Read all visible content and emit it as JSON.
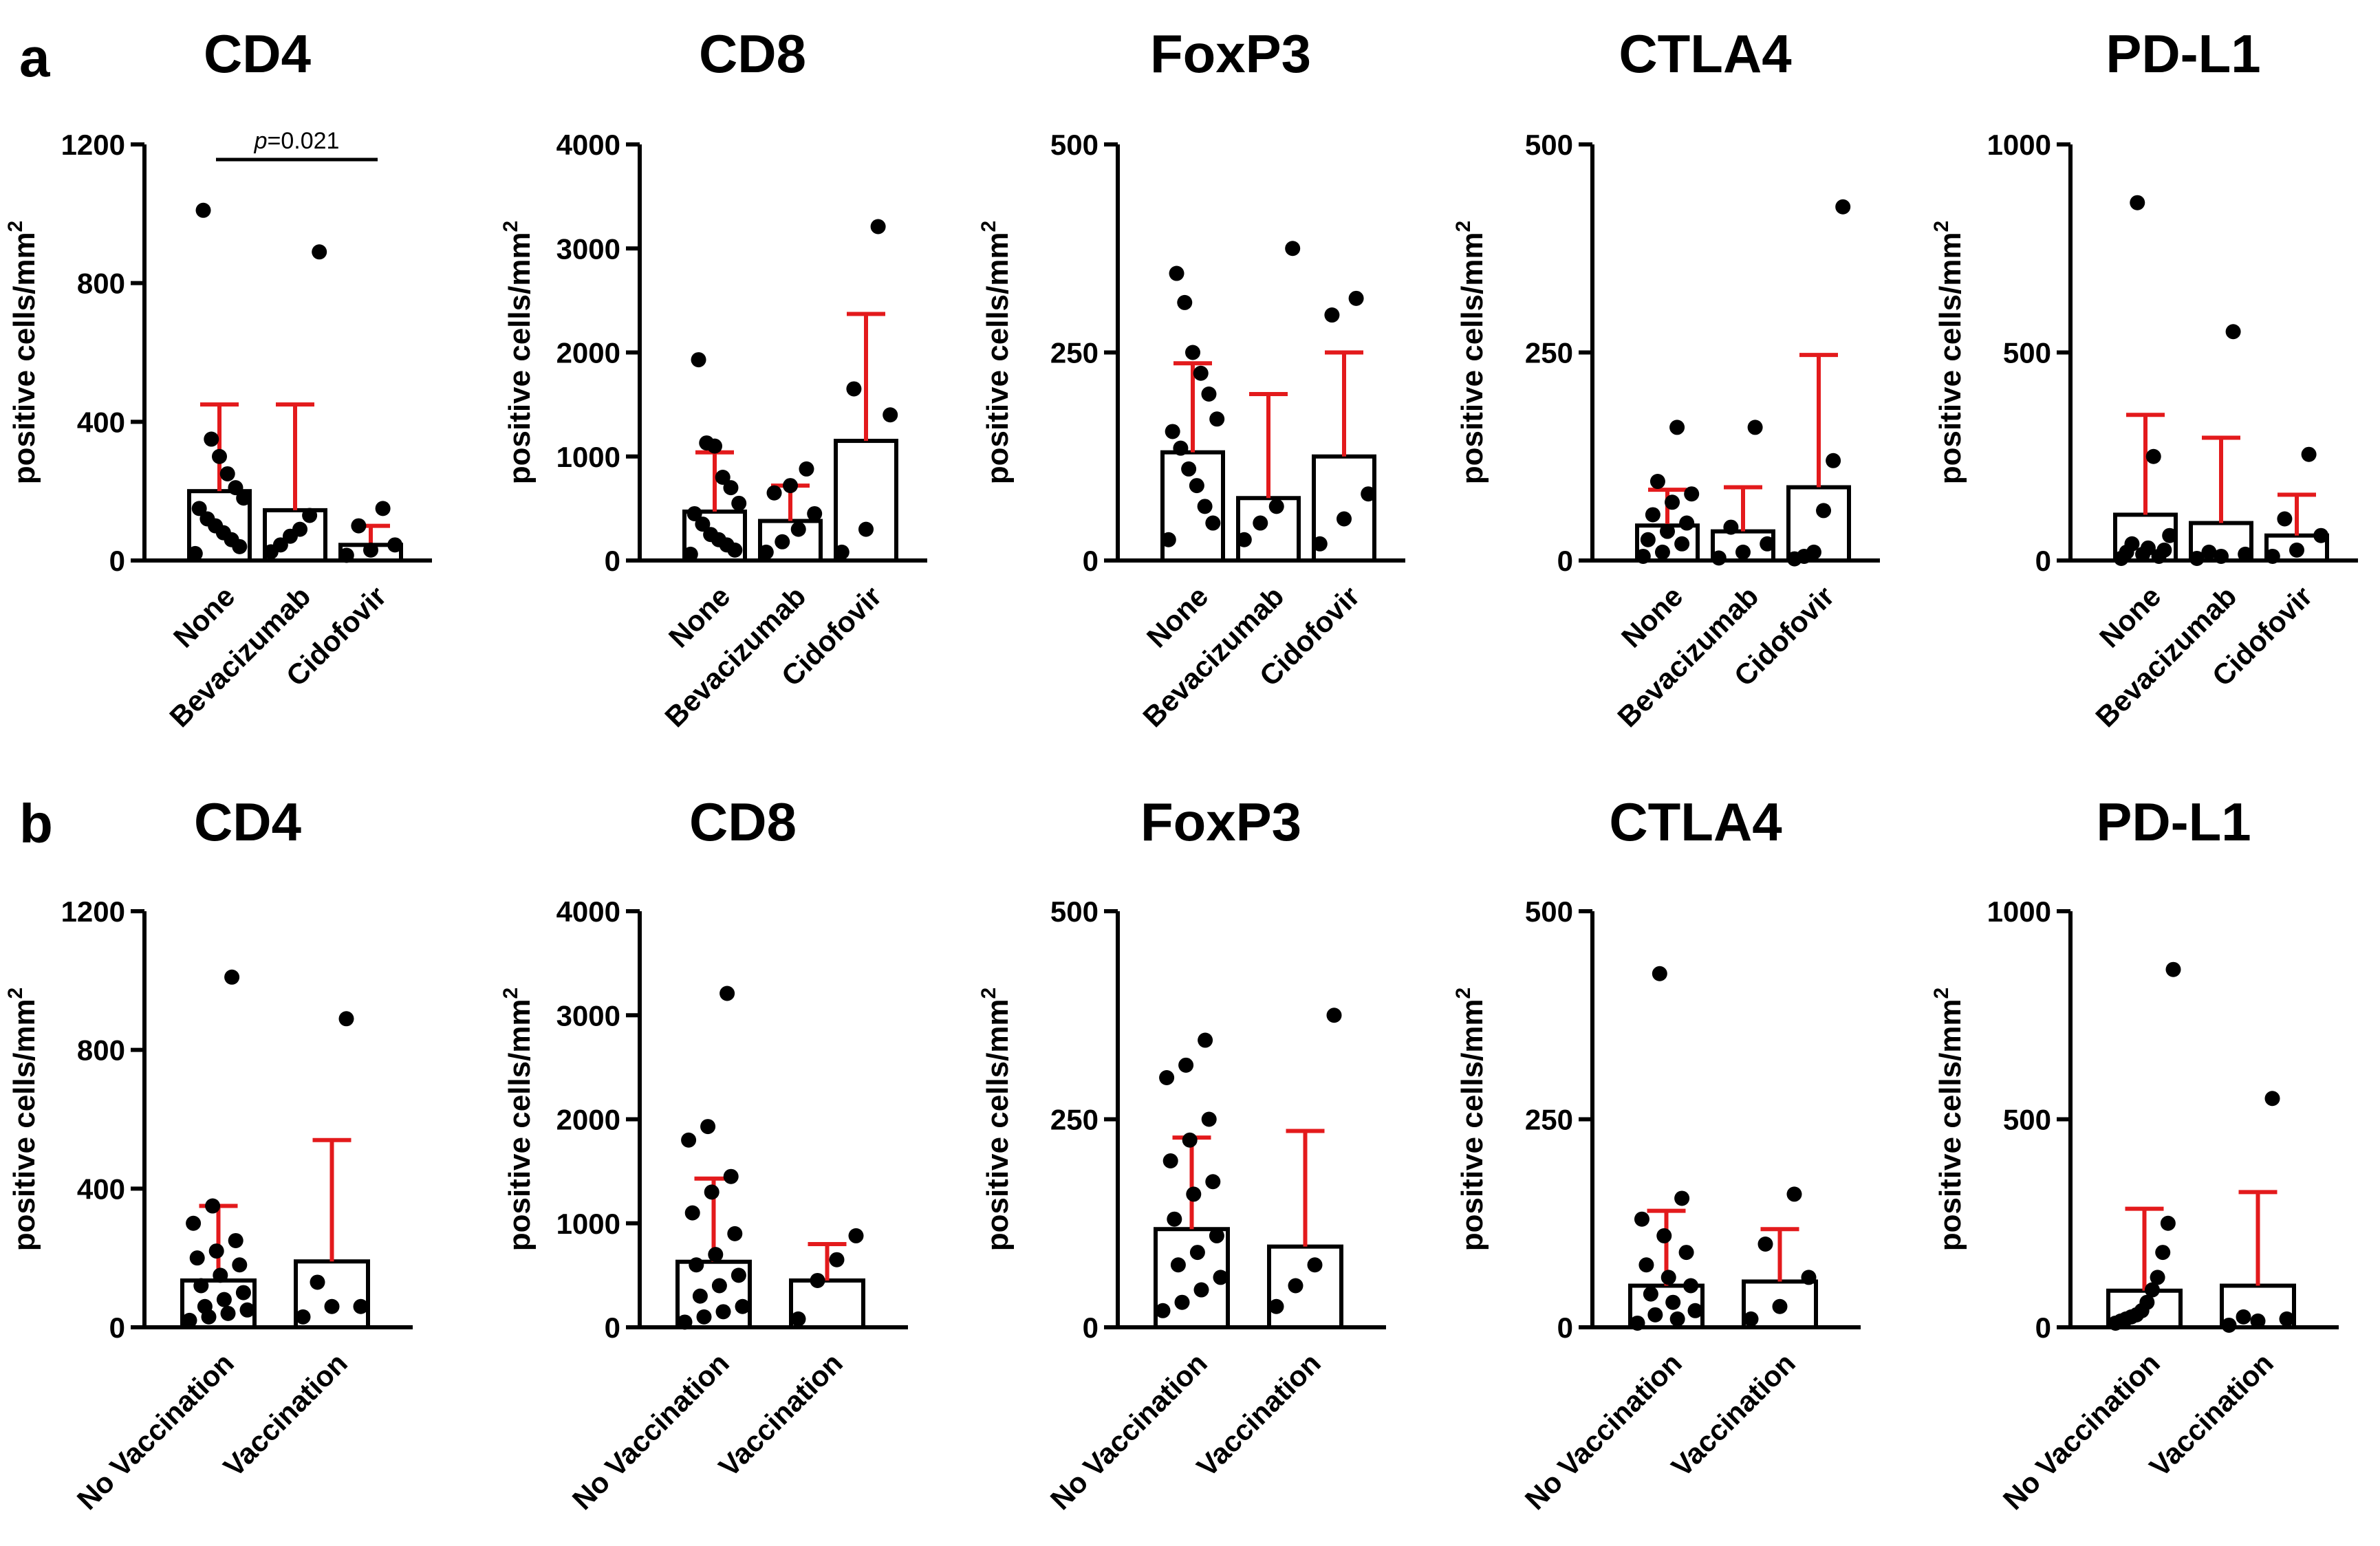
{
  "panels": [
    {
      "letter": "a"
    },
    {
      "letter": "b"
    }
  ],
  "colors": {
    "bar_fill": "#ffffff",
    "bar_stroke": "#000000",
    "error_bar": "#e31a1c",
    "point": "#000000",
    "axis": "#000000"
  },
  "chart_data": [
    {
      "type": "bar",
      "panel": "a",
      "title": "CD4",
      "ylabel": "positive cells/mm",
      "ylabel_sup": "2",
      "ylim": [
        0,
        1200
      ],
      "yticks": [
        0,
        400,
        800,
        1200
      ],
      "categories": [
        "None",
        "Bevacizumab",
        "Cidofovir"
      ],
      "values": [
        200,
        145,
        45
      ],
      "error_upper": [
        450,
        450,
        100
      ],
      "points": [
        [
          20,
          40,
          60,
          80,
          100,
          120,
          150,
          180,
          210,
          250,
          300,
          350,
          1010
        ],
        [
          25,
          45,
          70,
          90,
          130,
          890
        ],
        [
          15,
          30,
          45,
          100,
          150
        ]
      ],
      "annotation": {
        "text": "=0.021",
        "prefix": "p",
        "from": 0,
        "to": 2
      }
    },
    {
      "type": "bar",
      "panel": "a",
      "title": "CD8",
      "ylabel": "positive cells/mm",
      "ylabel_sup": "2",
      "ylim": [
        0,
        4000
      ],
      "yticks": [
        0,
        1000,
        2000,
        3000,
        4000
      ],
      "categories": [
        "None",
        "Bevacizumab",
        "Cidofovir"
      ],
      "values": [
        470,
        380,
        1150
      ],
      "error_upper": [
        1040,
        720,
        2370
      ],
      "points": [
        [
          60,
          100,
          150,
          200,
          250,
          350,
          450,
          550,
          700,
          800,
          1100,
          1130,
          1930
        ],
        [
          80,
          180,
          300,
          450,
          650,
          720,
          880
        ],
        [
          80,
          300,
          1400,
          1650,
          3210
        ]
      ]
    },
    {
      "type": "bar",
      "panel": "a",
      "title": "FoxP3",
      "ylabel": "positive cells/mm",
      "ylabel_sup": "2",
      "ylim": [
        0,
        500
      ],
      "yticks": [
        0,
        250,
        500
      ],
      "categories": [
        "None",
        "Bevacizumab",
        "Cidofovir"
      ],
      "values": [
        130,
        75,
        125
      ],
      "error_upper": [
        237,
        200,
        250
      ],
      "points": [
        [
          25,
          45,
          65,
          90,
          110,
          135,
          155,
          170,
          200,
          225,
          250,
          310,
          345
        ],
        [
          25,
          45,
          65,
          375
        ],
        [
          20,
          50,
          80,
          295,
          315
        ]
      ]
    },
    {
      "type": "bar",
      "panel": "a",
      "title": "CTLA4",
      "ylabel": "positive cells/mm",
      "ylabel_sup": "2",
      "ylim": [
        0,
        500
      ],
      "yticks": [
        0,
        250,
        500
      ],
      "categories": [
        "None",
        "Bevacizumab",
        "Cidofovir"
      ],
      "values": [
        42,
        35,
        88
      ],
      "error_upper": [
        85,
        88,
        247
      ],
      "points": [
        [
          5,
          10,
          20,
          25,
          35,
          45,
          55,
          70,
          80,
          95,
          160
        ],
        [
          3,
          10,
          20,
          40,
          160
        ],
        [
          2,
          5,
          10,
          60,
          120,
          425
        ]
      ]
    },
    {
      "type": "bar",
      "panel": "a",
      "title": "PD-L1",
      "ylabel": "positive cells/mm",
      "ylabel_sup": "2",
      "ylim": [
        0,
        1000
      ],
      "yticks": [
        0,
        500,
        1000
      ],
      "categories": [
        "None",
        "Bevacizumab",
        "Cidofovir"
      ],
      "values": [
        110,
        90,
        60
      ],
      "error_upper": [
        350,
        295,
        158
      ],
      "points": [
        [
          5,
          10,
          15,
          20,
          25,
          30,
          40,
          60,
          250,
          860
        ],
        [
          5,
          10,
          15,
          20,
          550
        ],
        [
          10,
          25,
          60,
          100,
          255
        ]
      ]
    },
    {
      "type": "bar",
      "panel": "b",
      "title": "CD4",
      "ylabel": "positive cells/mm",
      "ylabel_sup": "2",
      "ylim": [
        0,
        1200
      ],
      "yticks": [
        0,
        400,
        800,
        1200
      ],
      "categories": [
        "No Vaccination",
        "Vaccination"
      ],
      "values": [
        135,
        190
      ],
      "error_upper": [
        350,
        540
      ],
      "points": [
        [
          20,
          30,
          40,
          50,
          60,
          80,
          100,
          120,
          150,
          180,
          200,
          220,
          250,
          300,
          350,
          1010
        ],
        [
          30,
          60,
          60,
          130,
          890
        ]
      ]
    },
    {
      "type": "bar",
      "panel": "b",
      "title": "CD8",
      "ylabel": "positive cells/mm",
      "ylabel_sup": "2",
      "ylim": [
        0,
        4000
      ],
      "yticks": [
        0,
        1000,
        2000,
        3000,
        4000
      ],
      "categories": [
        "No Vaccination",
        "Vaccination"
      ],
      "values": [
        630,
        450
      ],
      "error_upper": [
        1430,
        800
      ],
      "points": [
        [
          50,
          100,
          150,
          200,
          300,
          400,
          500,
          600,
          700,
          900,
          1100,
          1300,
          1450,
          1800,
          1930,
          3210
        ],
        [
          80,
          450,
          650,
          880
        ]
      ]
    },
    {
      "type": "bar",
      "panel": "b",
      "title": "FoxP3",
      "ylabel": "positive cells/mm",
      "ylabel_sup": "2",
      "ylim": [
        0,
        500
      ],
      "yticks": [
        0,
        250,
        500
      ],
      "categories": [
        "No Vaccination",
        "Vaccination"
      ],
      "values": [
        118,
        97
      ],
      "error_upper": [
        228,
        236
      ],
      "points": [
        [
          20,
          30,
          45,
          60,
          75,
          90,
          110,
          130,
          160,
          175,
          200,
          225,
          250,
          300,
          315,
          345
        ],
        [
          25,
          50,
          75,
          375
        ]
      ]
    },
    {
      "type": "bar",
      "panel": "b",
      "title": "CTLA4",
      "ylabel": "positive cells/mm",
      "ylabel_sup": "2",
      "ylim": [
        0,
        500
      ],
      "yticks": [
        0,
        250,
        500
      ],
      "categories": [
        "No Vaccination",
        "Vaccination"
      ],
      "values": [
        50,
        55
      ],
      "error_upper": [
        140,
        118
      ],
      "points": [
        [
          5,
          10,
          15,
          20,
          30,
          40,
          50,
          60,
          75,
          90,
          110,
          130,
          155,
          425
        ],
        [
          10,
          25,
          60,
          100,
          160
        ]
      ]
    },
    {
      "type": "bar",
      "panel": "b",
      "title": "PD-L1",
      "ylabel": "positive cells/mm",
      "ylabel_sup": "2",
      "ylim": [
        0,
        1000
      ],
      "yticks": [
        0,
        500,
        1000
      ],
      "categories": [
        "No Vaccination",
        "Vaccination"
      ],
      "values": [
        88,
        100
      ],
      "error_upper": [
        285,
        325
      ],
      "points": [
        [
          10,
          15,
          20,
          25,
          30,
          40,
          60,
          90,
          120,
          180,
          250,
          860
        ],
        [
          5,
          15,
          20,
          25,
          550
        ]
      ]
    }
  ]
}
